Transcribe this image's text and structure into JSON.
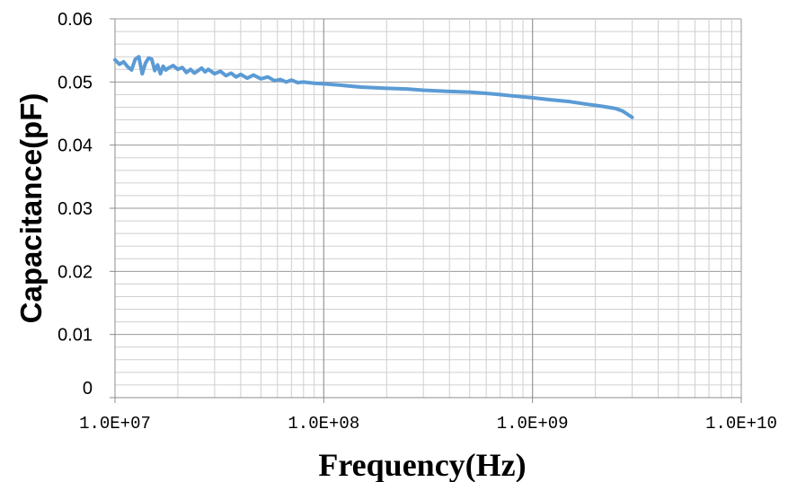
{
  "chart_data": {
    "type": "line",
    "title": "",
    "xlabel": "Frequency(Hz)",
    "ylabel": "Capacitance(pF)",
    "x_scale": "log",
    "xlim": [
      10000000,
      10000000000
    ],
    "ylim": [
      0,
      0.06
    ],
    "grid": true,
    "legend": "none",
    "x_tick_labels": [
      "1.0E+07",
      "1.0E+08",
      "1.0E+09",
      "1.0E+10"
    ],
    "y_tick_labels": [
      "0",
      "0.01",
      "0.02",
      "0.03",
      "0.04",
      "0.05",
      "0.06"
    ],
    "line_color": "#5b9bd5",
    "grid_color": "#bfbfbf",
    "series": [
      {
        "x": [
          10000000,
          10500000,
          11000000,
          11500000,
          12000000,
          12500000,
          13000000,
          13500000,
          14000000,
          14500000,
          15000000,
          15500000,
          16000000,
          16500000,
          17000000,
          17500000,
          18000000,
          19000000,
          20000000,
          21000000,
          22000000,
          23000000,
          24000000,
          25000000,
          26000000,
          27000000,
          28000000,
          30000000,
          32000000,
          34000000,
          36000000,
          38000000,
          40000000,
          43000000,
          46000000,
          50000000,
          54000000,
          58000000,
          62000000,
          66000000,
          70000000,
          75000000,
          80000000,
          90000000,
          100000000,
          120000000,
          150000000,
          200000000,
          250000000,
          300000000,
          400000000,
          500000000,
          600000000,
          700000000,
          800000000,
          1000000000,
          1200000000,
          1500000000,
          1800000000,
          2000000000,
          2200000000,
          2500000000,
          2700000000,
          3000000000
        ],
        "y": [
          0.0535,
          0.0528,
          0.0532,
          0.0524,
          0.0519,
          0.0536,
          0.054,
          0.0513,
          0.053,
          0.0538,
          0.0536,
          0.0518,
          0.0527,
          0.0513,
          0.0525,
          0.0519,
          0.0522,
          0.0526,
          0.052,
          0.0523,
          0.0515,
          0.052,
          0.0514,
          0.0518,
          0.0522,
          0.0516,
          0.052,
          0.0513,
          0.0517,
          0.051,
          0.0514,
          0.0508,
          0.0512,
          0.0506,
          0.0511,
          0.0505,
          0.0508,
          0.0502,
          0.0504,
          0.05,
          0.0503,
          0.0499,
          0.05,
          0.0498,
          0.0497,
          0.0495,
          0.0492,
          0.049,
          0.0489,
          0.0487,
          0.0485,
          0.0484,
          0.0482,
          0.048,
          0.0478,
          0.0475,
          0.0472,
          0.0469,
          0.0465,
          0.0463,
          0.0461,
          0.0458,
          0.0454,
          0.0444
        ]
      }
    ]
  }
}
